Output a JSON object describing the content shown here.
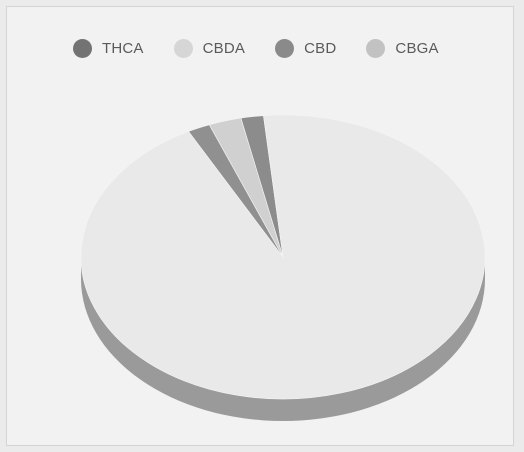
{
  "chart_data": {
    "type": "pie",
    "variant": "3d",
    "title": "",
    "legend_position": "top",
    "legend": [
      {
        "label": "THCA",
        "color": "#737373"
      },
      {
        "label": "CBDA",
        "color": "#d6d6d6"
      },
      {
        "label": "CBD",
        "color": "#8a8a8a"
      },
      {
        "label": "CBGA",
        "color": "#c2c2c2"
      }
    ],
    "slices": [
      {
        "label": "THCA",
        "value": 1.8,
        "color": "#8c8c8c",
        "side": "#707070"
      },
      {
        "label": "CBDA",
        "value": 93.8,
        "color": "#e9e9e9",
        "side": "#9a9a9a"
      },
      {
        "label": "CBD",
        "value": 1.8,
        "color": "#909090",
        "side": "#777777"
      },
      {
        "label": "CBGA",
        "value": 2.6,
        "color": "#d0d0d0",
        "side": "#a8a8a8"
      }
    ]
  }
}
